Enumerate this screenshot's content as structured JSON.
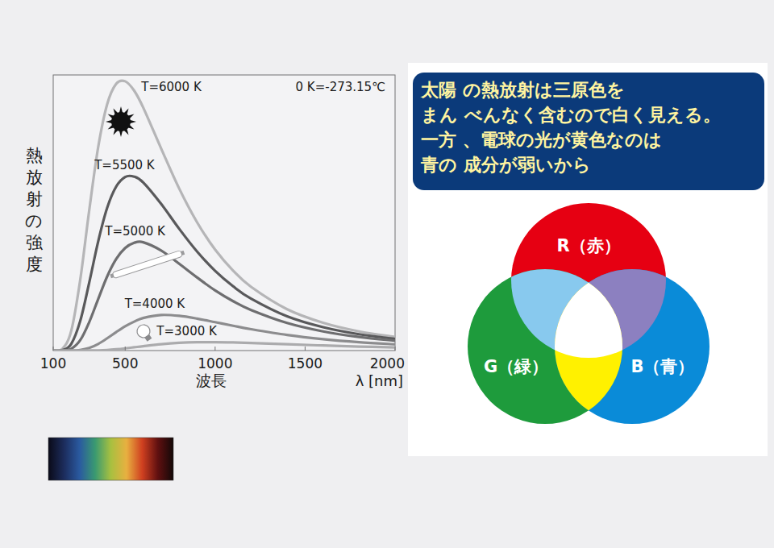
{
  "chart_data": {
    "type": "line",
    "x_label": "波長",
    "x_unit_label": "λ [nm]",
    "y_label": "熱放射の強度",
    "annotation": "0 K=-273.15℃",
    "x": [
      100,
      150,
      200,
      250,
      300,
      350,
      400,
      450,
      500,
      550,
      600,
      700,
      800,
      900,
      1000,
      1100,
      1200,
      1400,
      1600,
      1800,
      2000
    ],
    "series": [
      {
        "name": "T=6000 K",
        "color": "#b5b5b7",
        "values": [
          0,
          0.55,
          7.1,
          25.6,
          50.8,
          73.8,
          89.4,
          96.8,
          97.7,
          94.3,
          88.2,
          73.3,
          58.8,
          46.5,
          36.6,
          29.0,
          23.1,
          15.0,
          10.1,
          6.95,
          4.94
        ]
      },
      {
        "name": "T=5500 K",
        "color": "#59595b",
        "values": [
          0,
          0.13,
          2.4,
          10.7,
          24.6,
          39.6,
          51.8,
          59.5,
          63.0,
          63.1,
          61.0,
          53.2,
          44.2,
          35.9,
          28.9,
          23.3,
          18.8,
          12.4,
          8.46,
          5.91,
          4.24
        ]
      },
      {
        "name": "T=5000 K",
        "color": "#6e6e70",
        "values": [
          0,
          0.02,
          0.65,
          3.76,
          10.3,
          18.7,
          26.9,
          33.2,
          37.2,
          39.1,
          39.3,
          36.3,
          31.5,
          26.5,
          21.8,
          17.9,
          14.7,
          10.0,
          6.94,
          4.92,
          3.56
        ]
      },
      {
        "name": "T=4000 K",
        "color": "#8c8c8e",
        "values": [
          0,
          0,
          0,
          0.21,
          0.94,
          2.4,
          4.45,
          6.7,
          8.81,
          10.5,
          11.8,
          12.9,
          12.6,
          11.6,
          10.3,
          8.99,
          7.74,
          5.65,
          4.13,
          3.04,
          2.27
        ]
      },
      {
        "name": "T=3000 K",
        "color": "#ababad",
        "values": [
          0,
          0,
          0,
          0,
          0.02,
          0.08,
          0.22,
          0.47,
          0.8,
          1.19,
          1.59,
          2.31,
          2.79,
          3.03,
          3.05,
          2.94,
          2.76,
          2.29,
          1.84,
          1.45,
          1.15
        ]
      }
    ],
    "xlim": [
      100,
      2000
    ],
    "ylim": [
      0,
      100
    ],
    "xticks": [
      100,
      500,
      1000,
      1500,
      2000
    ],
    "yticks": [],
    "tick_labels": "x",
    "grid": false
  },
  "panel": {
    "lines": [
      "太陽 の熱放射は三原色を",
      "まん べんなく含むので白く見える。",
      "一方 、電球の光が黄色なのは",
      "青の 成分が弱いから"
    ],
    "text_color": "#fff4a0",
    "background": "#0b3a7a"
  },
  "venn": {
    "circles": [
      {
        "label": "R（赤）",
        "color": "#e60012"
      },
      {
        "label": "G（緑）",
        "color": "#1e9b3c"
      },
      {
        "label": "B（青）",
        "color": "#0a8bd8"
      }
    ],
    "overlaps": [
      {
        "circles": [
          0,
          1
        ],
        "color": "#88c9ee"
      },
      {
        "circles": [
          0,
          2
        ],
        "color": "#8c80c0"
      },
      {
        "circles": [
          1,
          2
        ],
        "color": "#fff100"
      },
      {
        "circles": [
          0,
          1,
          2
        ],
        "color": "#ffffff"
      }
    ]
  },
  "spectrum": {
    "colors": [
      "#0a0a18",
      "#1c2c5c",
      "#2a5aa0",
      "#3a9a70",
      "#a8c040",
      "#e8b040",
      "#d04020",
      "#601010",
      "#120808"
    ]
  }
}
